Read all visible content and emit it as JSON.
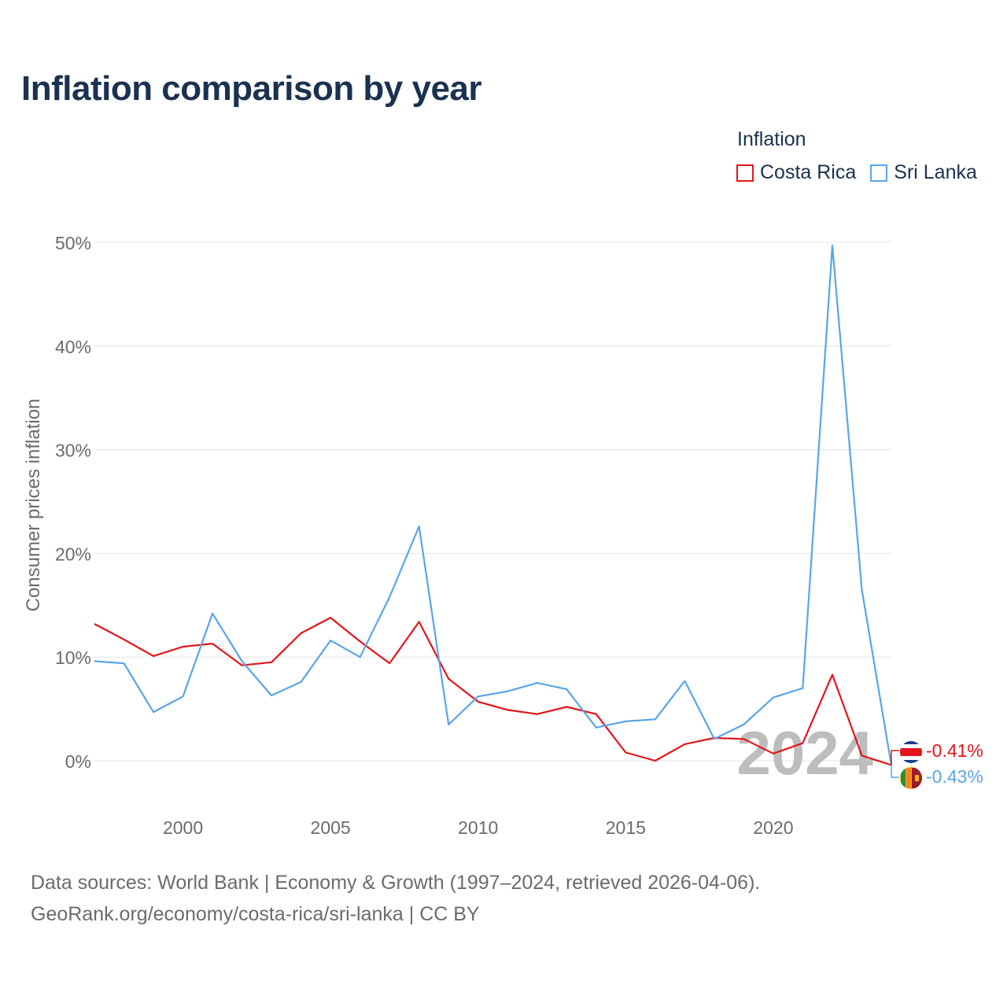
{
  "title": "Inflation comparison by year",
  "legend": {
    "title": "Inflation",
    "items": [
      {
        "label": "Costa Rica",
        "color": "#e3151a"
      },
      {
        "label": "Sri Lanka",
        "color": "#5aa5e6"
      }
    ]
  },
  "footer": {
    "line1": "Data sources: World Bank | Economy & Growth (1997–2024, retrieved 2026-04-06).",
    "line2": "GeoRank.org/economy/costa-rica/sri-lanka | CC BY"
  },
  "chart_data": {
    "type": "line",
    "title": "Inflation comparison by year",
    "xlabel": "",
    "ylabel": "Consumer prices inflation",
    "x": [
      1997,
      1998,
      1999,
      2000,
      2001,
      2002,
      2003,
      2004,
      2005,
      2006,
      2007,
      2008,
      2009,
      2010,
      2011,
      2012,
      2013,
      2014,
      2015,
      2016,
      2017,
      2018,
      2019,
      2020,
      2021,
      2022,
      2023,
      2024
    ],
    "xticks": [
      2000,
      2005,
      2010,
      2015,
      2020
    ],
    "xtick_labels": [
      "2000",
      "2005",
      "2010",
      "2015",
      "2020"
    ],
    "ylim": [
      -2,
      52
    ],
    "yticks": [
      0,
      10,
      20,
      30,
      40,
      50
    ],
    "ytick_labels": [
      "0%",
      "10%",
      "20%",
      "30%",
      "40%",
      "50%"
    ],
    "grid": true,
    "year_watermark": "2024",
    "series": [
      {
        "name": "Costa Rica",
        "color": "#e3151a",
        "end_label": "-0.41%",
        "values": [
          13.2,
          11.7,
          10.1,
          11.0,
          11.3,
          9.2,
          9.5,
          12.3,
          13.8,
          11.5,
          9.4,
          13.4,
          7.9,
          5.7,
          4.9,
          4.5,
          5.2,
          4.5,
          0.8,
          0.0,
          1.6,
          2.2,
          2.1,
          0.7,
          1.7,
          8.3,
          0.5,
          -0.41
        ]
      },
      {
        "name": "Sri Lanka",
        "color": "#5aa5e6",
        "end_label": "-0.43%",
        "values": [
          9.6,
          9.4,
          4.7,
          6.2,
          14.2,
          9.6,
          6.3,
          7.6,
          11.6,
          10.0,
          15.8,
          22.6,
          3.5,
          6.2,
          6.7,
          7.5,
          6.9,
          3.2,
          3.8,
          4.0,
          7.7,
          2.1,
          3.5,
          6.1,
          7.0,
          49.7,
          16.5,
          -0.43
        ]
      }
    ]
  }
}
